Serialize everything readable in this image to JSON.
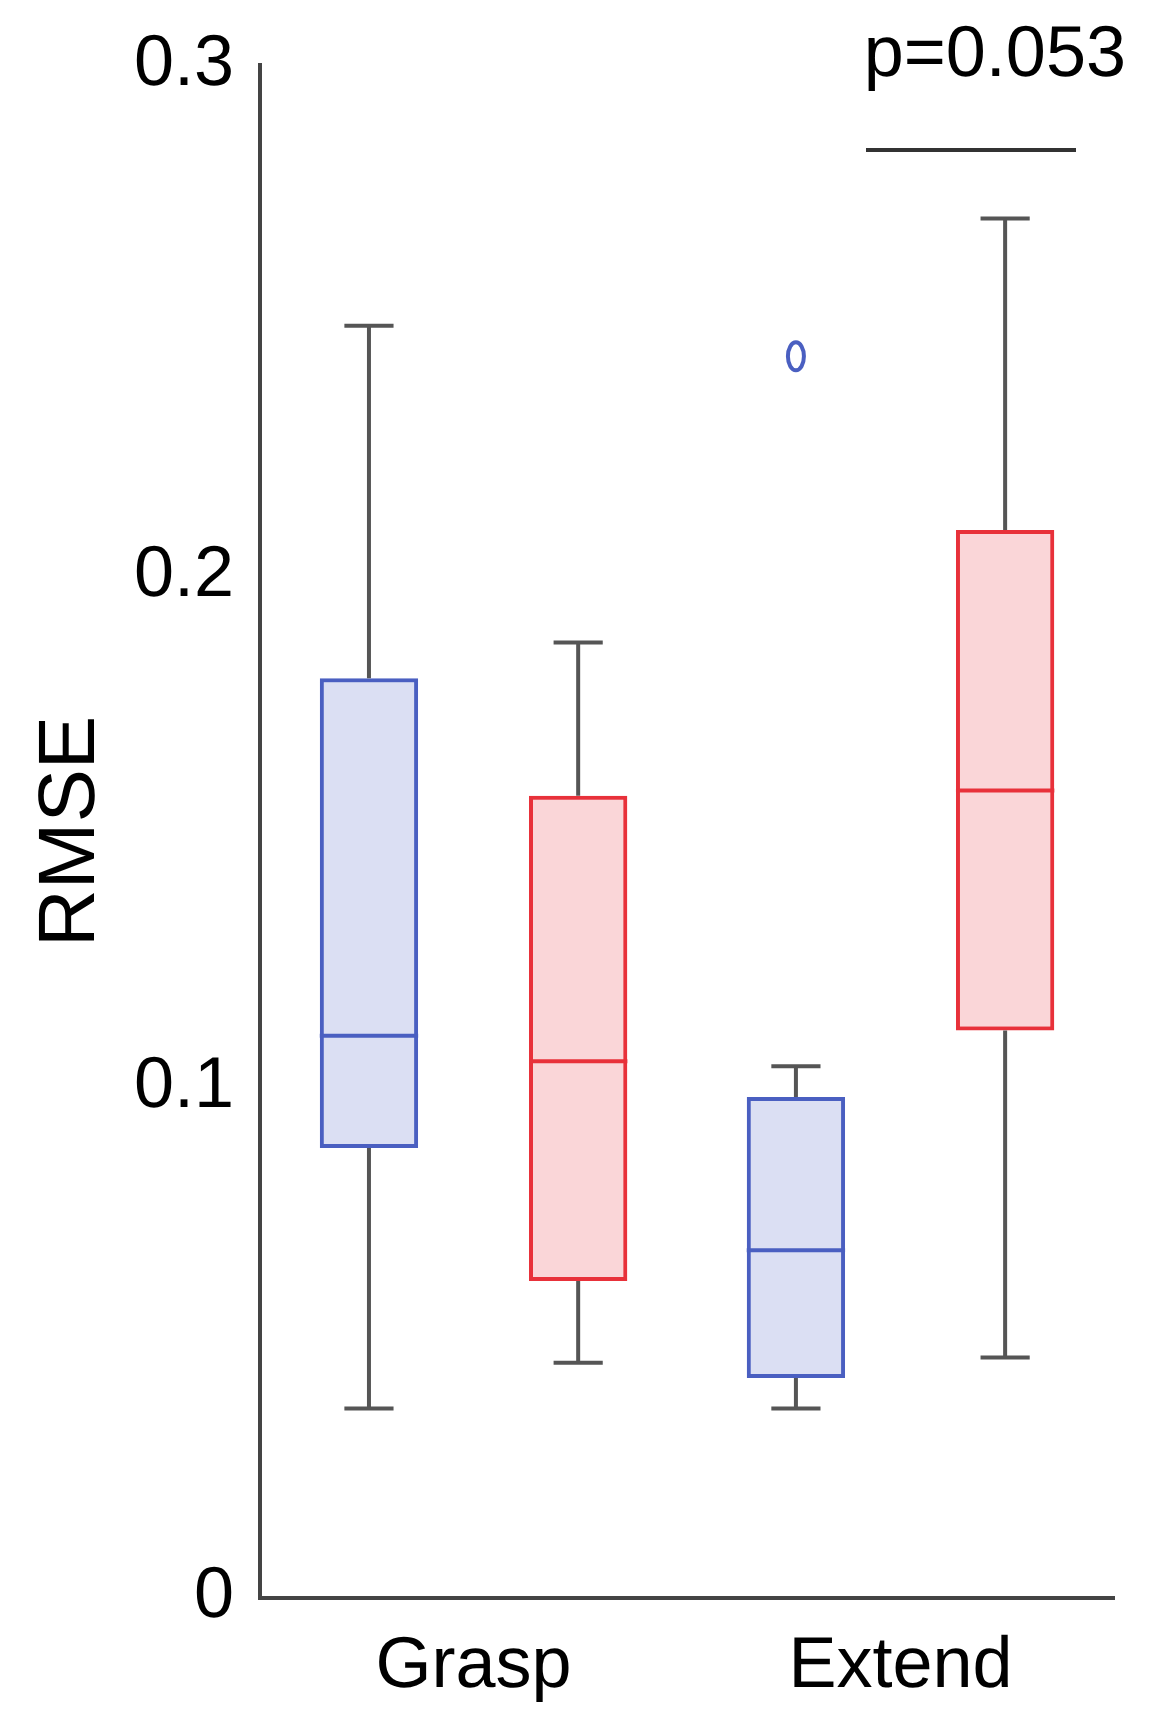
{
  "chart_data": {
    "type": "box",
    "ylabel": "RMSE",
    "categories": [
      "Grasp",
      "Extend"
    ],
    "ylim": [
      0,
      0.3
    ],
    "yticks": [
      0,
      0.1,
      0.2,
      0.3
    ],
    "grid": false,
    "annotations": [
      "p=0.053"
    ],
    "series": [
      {
        "color": "#4a5fc1",
        "boxes": [
          {
            "low": 0.037,
            "q1": 0.088,
            "median": 0.11,
            "q3": 0.18,
            "high": 0.249
          },
          {
            "low": 0.037,
            "q1": 0.043,
            "median": 0.068,
            "q3": 0.098,
            "high": 0.104,
            "outliers": [
              0.243
            ]
          }
        ]
      },
      {
        "color": "#e8313a",
        "boxes": [
          {
            "low": 0.046,
            "q1": 0.062,
            "median": 0.105,
            "q3": 0.157,
            "high": 0.187
          },
          {
            "low": 0.047,
            "q1": 0.111,
            "median": 0.158,
            "q3": 0.209,
            "high": 0.27
          }
        ]
      }
    ]
  }
}
